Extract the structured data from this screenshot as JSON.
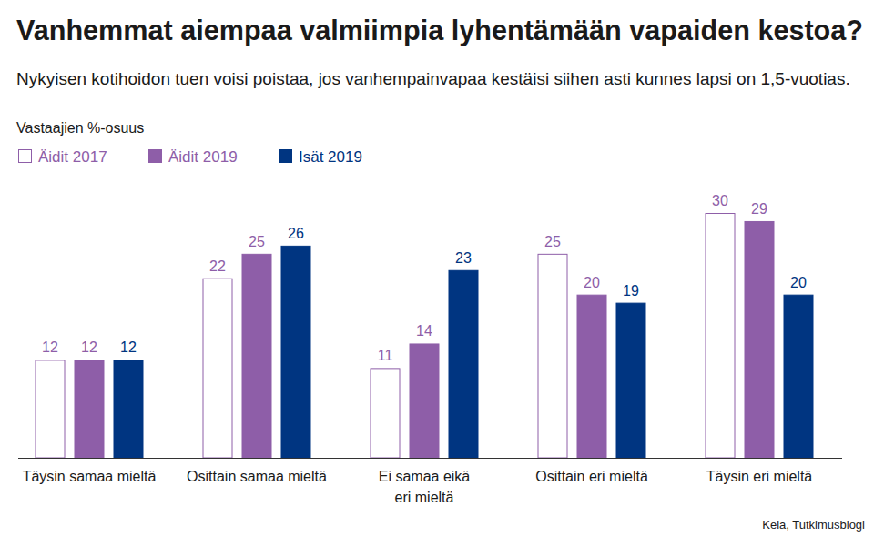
{
  "chart_data": {
    "type": "bar",
    "title": "Vanhemmat aiempaa valmiimpia lyhentämään vapaiden kestoa?",
    "subtitle": "Nykyisen kotihoidon tuen voisi poistaa, jos vanhempainvapaa kestäisi siihen asti kunnes lapsi on 1,5-vuotias.",
    "y_label": "Vastaajien %-osuus",
    "source": "Kela, Tutkimusblogi",
    "categories": [
      "Täysin samaa mieltä",
      "Osittain samaa mieltä",
      "Ei samaa eikä\neri mieltä",
      "Osittain eri mieltä",
      "Täysin eri mieltä"
    ],
    "series": [
      {
        "name": "Äidit 2017",
        "color": "#ffffff",
        "values": [
          12,
          22,
          11,
          25,
          30
        ]
      },
      {
        "name": "Äidit 2019",
        "color": "#8e5ea8",
        "values": [
          12,
          25,
          14,
          20,
          29
        ]
      },
      {
        "name": "Isät 2019",
        "color": "#003581",
        "values": [
          12,
          26,
          23,
          19,
          20
        ]
      }
    ],
    "ylim": [
      0,
      30
    ],
    "data_labels": true,
    "tick_labels": "x",
    "grid": false,
    "legend": "top-left"
  }
}
